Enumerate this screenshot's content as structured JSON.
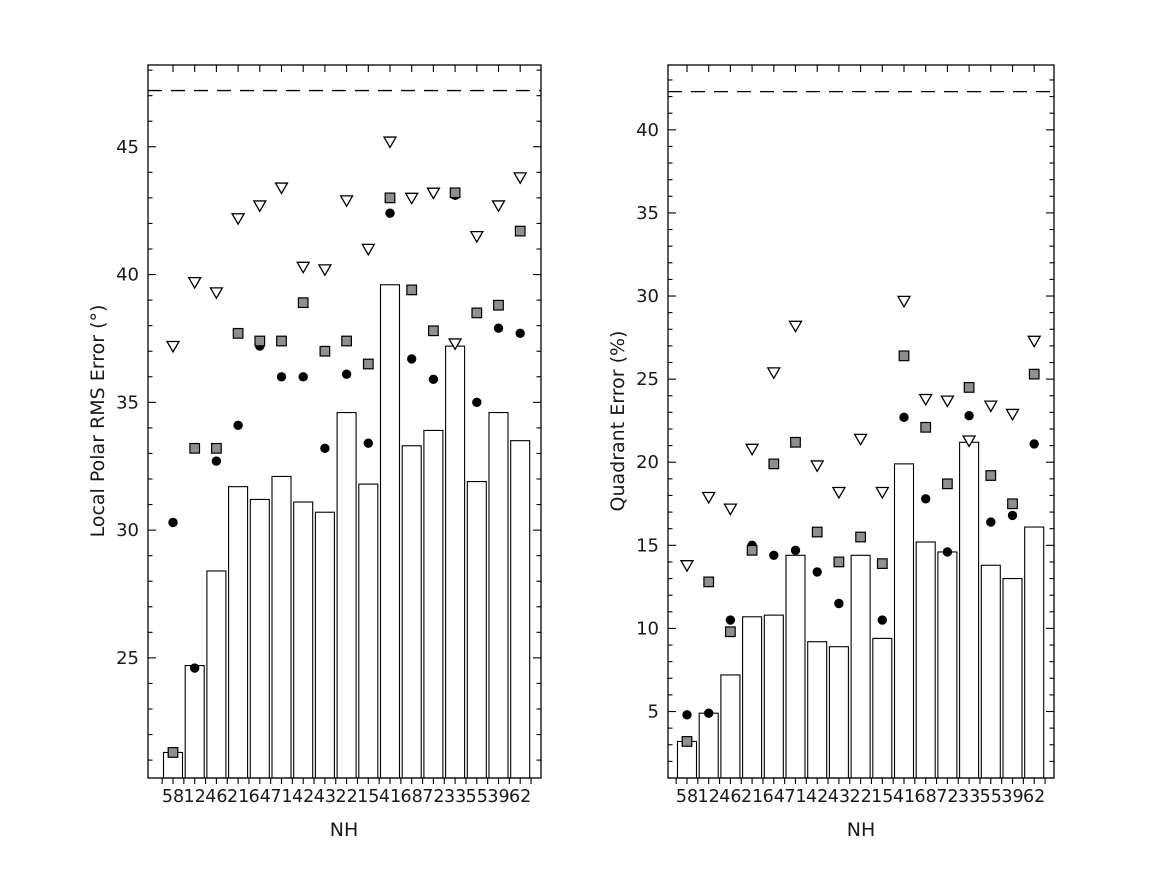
{
  "figure": {
    "background": "#ffffff"
  },
  "colors": {
    "axis": "#000000",
    "bar_fill": "#ffffff",
    "bar_edge": "#000000",
    "circle_fill": "#000000",
    "square_fill": "#8f8f8f",
    "square_edge": "#000000",
    "triangle_fill": "#ffffff",
    "triangle_edge": "#000000",
    "dashed_line": "#000000",
    "text": "#1a1a1a"
  },
  "chart_data": [
    {
      "type": "bar",
      "title": "",
      "xlabel": "NH",
      "ylabel": "Local Polar RMS Error (°)",
      "categories": [
        "58",
        "12",
        "46",
        "21",
        "64",
        "71",
        "42",
        "43",
        "22",
        "15",
        "41",
        "68",
        "72",
        "33",
        "55",
        "39",
        "62"
      ],
      "ylim": [
        20.3,
        48.2
      ],
      "yticks": [
        25,
        30,
        35,
        40,
        45
      ],
      "minor_tick_step": 1,
      "grid": false,
      "legend": "none",
      "dashed_line_y": 47.2,
      "series": [
        {
          "name": "bar-heights",
          "type": "bar",
          "marker": "bar",
          "values": [
            21.3,
            24.7,
            28.4,
            31.7,
            31.2,
            32.1,
            31.1,
            30.7,
            34.6,
            31.8,
            39.6,
            33.3,
            33.9,
            37.2,
            31.9,
            34.6,
            33.5
          ]
        },
        {
          "name": "filled-circle",
          "type": "scatter",
          "marker": "circle",
          "values": [
            30.3,
            24.6,
            32.7,
            34.1,
            37.2,
            36.0,
            36.0,
            33.2,
            36.1,
            33.4,
            42.4,
            36.7,
            35.9,
            43.1,
            35.0,
            37.9,
            37.7
          ]
        },
        {
          "name": "gray-square",
          "type": "scatter",
          "marker": "square",
          "values": [
            21.3,
            33.2,
            33.2,
            37.7,
            37.4,
            37.4,
            38.9,
            37.0,
            37.4,
            36.5,
            43.0,
            39.4,
            37.8,
            43.2,
            38.5,
            38.8,
            41.7
          ]
        },
        {
          "name": "open-triangle-down",
          "type": "scatter",
          "marker": "triangle-down",
          "values": [
            37.2,
            39.7,
            39.3,
            42.2,
            42.7,
            43.4,
            40.3,
            40.2,
            42.9,
            41.0,
            45.2,
            43.0,
            43.2,
            37.3,
            41.5,
            42.7,
            43.8
          ]
        }
      ]
    },
    {
      "type": "bar",
      "title": "",
      "xlabel": "NH",
      "ylabel": "Quadrant Error (%)",
      "categories": [
        "58",
        "12",
        "46",
        "21",
        "64",
        "71",
        "42",
        "43",
        "22",
        "15",
        "41",
        "68",
        "72",
        "33",
        "55",
        "39",
        "62"
      ],
      "ylim": [
        1.0,
        43.9
      ],
      "yticks": [
        5,
        10,
        15,
        20,
        25,
        30,
        35,
        40
      ],
      "minor_tick_step": 1,
      "grid": false,
      "legend": "none",
      "dashed_line_y": 42.3,
      "series": [
        {
          "name": "bar-heights",
          "type": "bar",
          "marker": "bar",
          "values": [
            3.2,
            4.9,
            7.2,
            10.7,
            10.8,
            14.4,
            9.2,
            8.9,
            14.4,
            9.4,
            19.9,
            15.2,
            14.6,
            21.2,
            13.8,
            13.0,
            16.1
          ]
        },
        {
          "name": "filled-circle",
          "type": "scatter",
          "marker": "circle",
          "values": [
            4.8,
            4.9,
            10.5,
            15.0,
            14.4,
            14.7,
            13.4,
            11.5,
            15.5,
            10.5,
            22.7,
            17.8,
            14.6,
            22.8,
            16.4,
            16.8,
            21.1
          ]
        },
        {
          "name": "gray-square",
          "type": "scatter",
          "marker": "square",
          "values": [
            3.2,
            12.8,
            9.8,
            14.7,
            19.9,
            21.2,
            15.8,
            14.0,
            15.5,
            13.9,
            26.4,
            22.1,
            18.7,
            24.5,
            19.2,
            17.5,
            25.3
          ]
        },
        {
          "name": "open-triangle-down",
          "type": "scatter",
          "marker": "triangle-down",
          "values": [
            13.8,
            17.9,
            17.2,
            20.8,
            25.4,
            28.2,
            19.8,
            18.2,
            21.4,
            18.2,
            29.7,
            23.8,
            23.7,
            21.3,
            23.4,
            22.9,
            27.3
          ]
        }
      ]
    }
  ]
}
